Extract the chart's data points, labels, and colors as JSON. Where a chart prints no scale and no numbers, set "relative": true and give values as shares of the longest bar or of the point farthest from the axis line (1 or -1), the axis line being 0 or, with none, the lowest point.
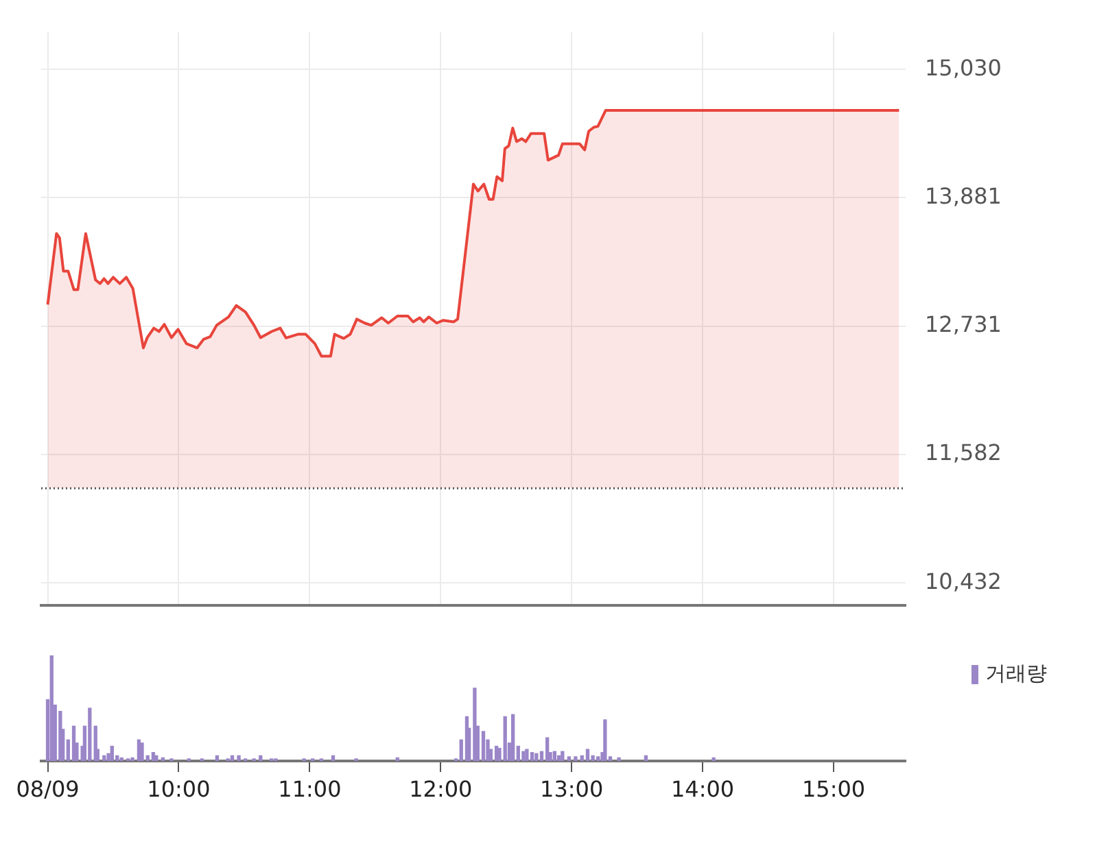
{
  "chart_data": [
    {
      "type": "area",
      "x": [
        9.0,
        9.067,
        9.09,
        9.12,
        9.156,
        9.2,
        9.23,
        9.29,
        9.365,
        9.4,
        9.43,
        9.46,
        9.5,
        9.55,
        9.6,
        9.65,
        9.7,
        9.73,
        9.76,
        9.81,
        9.85,
        9.89,
        9.945,
        9.995,
        10.06,
        10.14,
        10.19,
        10.24,
        10.29,
        10.38,
        10.44,
        10.51,
        10.575,
        10.625,
        10.71,
        10.775,
        10.82,
        10.91,
        10.97,
        11.04,
        11.09,
        11.16,
        11.19,
        11.26,
        11.31,
        11.36,
        11.42,
        11.47,
        11.55,
        11.6,
        11.67,
        11.75,
        11.79,
        11.84,
        11.87,
        11.91,
        11.97,
        12.02,
        12.1,
        12.13,
        12.25,
        12.285,
        12.33,
        12.37,
        12.4,
        12.43,
        12.47,
        12.49,
        12.52,
        12.55,
        12.58,
        12.62,
        12.65,
        12.69,
        12.79,
        12.82,
        12.9,
        12.93,
        13.06,
        13.1,
        13.13,
        13.17,
        13.2,
        13.26,
        15.5
      ],
      "values": [
        12925,
        13560,
        13523,
        13224,
        13224,
        13058,
        13058,
        13560,
        13146,
        13113,
        13157,
        13113,
        13169,
        13113,
        13169,
        13069,
        12736,
        12537,
        12629,
        12714,
        12684,
        12748,
        12629,
        12703,
        12574,
        12537,
        12614,
        12637,
        12740,
        12814,
        12917,
        12858,
        12740,
        12629,
        12684,
        12714,
        12626,
        12659,
        12659,
        12574,
        12463,
        12463,
        12659,
        12622,
        12659,
        12795,
        12759,
        12740,
        12807,
        12759,
        12822,
        12822,
        12770,
        12807,
        12770,
        12814,
        12759,
        12784,
        12770,
        12795,
        14003,
        13941,
        14003,
        13867,
        13867,
        14070,
        14033,
        14321,
        14347,
        14506,
        14384,
        14410,
        14384,
        14457,
        14457,
        14218,
        14262,
        14365,
        14365,
        14310,
        14476,
        14513,
        14520,
        14664,
        14664
      ],
      "color": "#e8453c",
      "xlim": [
        8.95,
        15.55
      ],
      "xticks": [
        {
          "value": 9,
          "label": null
        },
        {
          "value": 10,
          "label": null
        },
        {
          "value": 11,
          "label": null
        },
        {
          "value": 12,
          "label": null
        },
        {
          "value": 13,
          "label": null
        },
        {
          "value": 14,
          "label": null
        },
        {
          "value": 15,
          "label": null
        }
      ],
      "ylim": [
        10233,
        15362
      ],
      "yticks": [
        {
          "value": 10432,
          "label": "10,432"
        },
        {
          "value": 11582,
          "label": "11,582"
        },
        {
          "value": 12731,
          "label": "12,731"
        },
        {
          "value": 13881,
          "label": "13,881"
        },
        {
          "value": 15030,
          "label": "15,030"
        }
      ],
      "ref_lines": [
        {
          "axis": "y",
          "value": 11280,
          "color": "#555555",
          "line_style": "dotted"
        }
      ],
      "grid": true,
      "tick_labels": "y"
    },
    {
      "type": "bar",
      "relative": true,
      "series": [
        {
          "name": "거래량",
          "color": "#9b86c8",
          "x": [
            9.0,
            9.03,
            9.056,
            9.096,
            9.116,
            9.156,
            9.199,
            9.222,
            9.265,
            9.282,
            9.321,
            9.365,
            9.381,
            9.431,
            9.464,
            9.491,
            9.53,
            9.564,
            9.613,
            9.647,
            9.696,
            9.72,
            9.763,
            9.806,
            9.829,
            9.879,
            9.945,
            10.078,
            10.177,
            10.293,
            10.376,
            10.409,
            10.459,
            10.509,
            10.575,
            10.625,
            10.708,
            10.741,
            10.957,
            11.023,
            11.089,
            11.179,
            11.355,
            11.67,
            12.117,
            12.157,
            12.2,
            12.217,
            12.26,
            12.283,
            12.326,
            12.36,
            12.383,
            12.426,
            12.449,
            12.492,
            12.525,
            12.552,
            12.592,
            12.632,
            12.658,
            12.698,
            12.731,
            12.771,
            12.814,
            12.837,
            12.87,
            12.903,
            12.93,
            12.98,
            13.03,
            13.079,
            13.122,
            13.162,
            13.202,
            13.235,
            13.255,
            13.295,
            13.361,
            13.567,
            14.084
          ],
          "values": [
            0.58,
            1.0,
            0.53,
            0.47,
            0.3,
            0.2,
            0.33,
            0.17,
            0.14,
            0.33,
            0.5,
            0.33,
            0.11,
            0.05,
            0.07,
            0.14,
            0.05,
            0.03,
            0.02,
            0.03,
            0.2,
            0.17,
            0.05,
            0.08,
            0.05,
            0.03,
            0.02,
            0.02,
            0.02,
            0.05,
            0.02,
            0.05,
            0.05,
            0.02,
            0.02,
            0.05,
            0.02,
            0.02,
            0.02,
            0.02,
            0.02,
            0.05,
            0.02,
            0.03,
            0.02,
            0.2,
            0.42,
            0.31,
            0.69,
            0.33,
            0.28,
            0.2,
            0.11,
            0.14,
            0.12,
            0.42,
            0.17,
            0.44,
            0.14,
            0.09,
            0.11,
            0.08,
            0.07,
            0.09,
            0.22,
            0.08,
            0.09,
            0.05,
            0.09,
            0.04,
            0.04,
            0.05,
            0.11,
            0.05,
            0.04,
            0.08,
            0.39,
            0.04,
            0.03,
            0.05,
            0.03
          ]
        }
      ],
      "xlim": [
        8.95,
        15.55
      ],
      "xticks": [
        {
          "value": 9,
          "label": "08/09"
        },
        {
          "value": 10,
          "label": "10:00"
        },
        {
          "value": 11,
          "label": "11:00"
        },
        {
          "value": 12,
          "label": "12:00"
        },
        {
          "value": 13,
          "label": "13:00"
        },
        {
          "value": 14,
          "label": "14:00"
        },
        {
          "value": 15,
          "label": "15:00"
        }
      ],
      "legend": "top right",
      "tick_labels": "x"
    }
  ]
}
